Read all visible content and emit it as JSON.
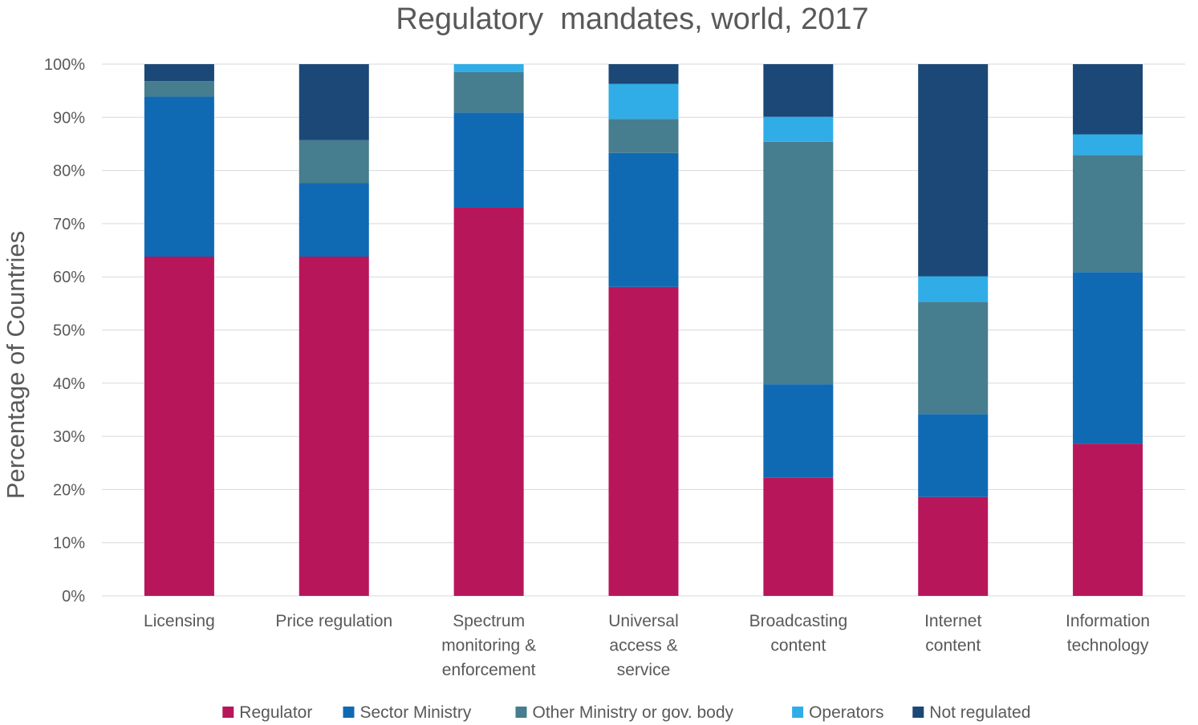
{
  "chart_data": {
    "type": "bar",
    "stacked": true,
    "title": "Regulatory  mandates, world, 2017",
    "xlabel": "",
    "ylabel": "Percentage of Countries",
    "ylim": [
      0,
      100
    ],
    "y_tick_values": [
      0,
      10,
      20,
      30,
      40,
      50,
      60,
      70,
      80,
      90,
      100
    ],
    "y_tick_labels": [
      "0%",
      "10%",
      "20%",
      "30%",
      "40%",
      "50%",
      "60%",
      "70%",
      "80%",
      "90%",
      "100%"
    ],
    "grid": true,
    "legend_position": "bottom",
    "categories": [
      [
        "Licensing"
      ],
      [
        "Price regulation"
      ],
      [
        "Spectrum",
        "monitoring &",
        "enforcement"
      ],
      [
        "Universal",
        "access &",
        "service"
      ],
      [
        "Broadcasting",
        "content"
      ],
      [
        "Internet",
        "content"
      ],
      [
        "Information",
        "technology"
      ]
    ],
    "series": [
      {
        "name": "Regulator",
        "color": "#b8165b",
        "values": [
          63.8,
          63.8,
          73.0,
          58.1,
          22.2,
          18.6,
          28.6
        ]
      },
      {
        "name": "Sector Ministry",
        "color": "#106ab3",
        "values": [
          30.1,
          13.8,
          17.9,
          25.2,
          17.6,
          15.6,
          32.3
        ]
      },
      {
        "name": "Other Ministry or gov. body",
        "color": "#467d8f",
        "values": [
          2.9,
          8.1,
          7.6,
          6.4,
          45.6,
          21.1,
          22.0
        ]
      },
      {
        "name": "Operators",
        "color": "#30ade6",
        "values": [
          0.0,
          0.0,
          1.5,
          6.6,
          4.7,
          4.8,
          3.9
        ]
      },
      {
        "name": "Not regulated",
        "color": "#1b4876",
        "values": [
          3.2,
          14.3,
          0.0,
          3.7,
          9.9,
          39.9,
          13.2
        ]
      }
    ]
  }
}
